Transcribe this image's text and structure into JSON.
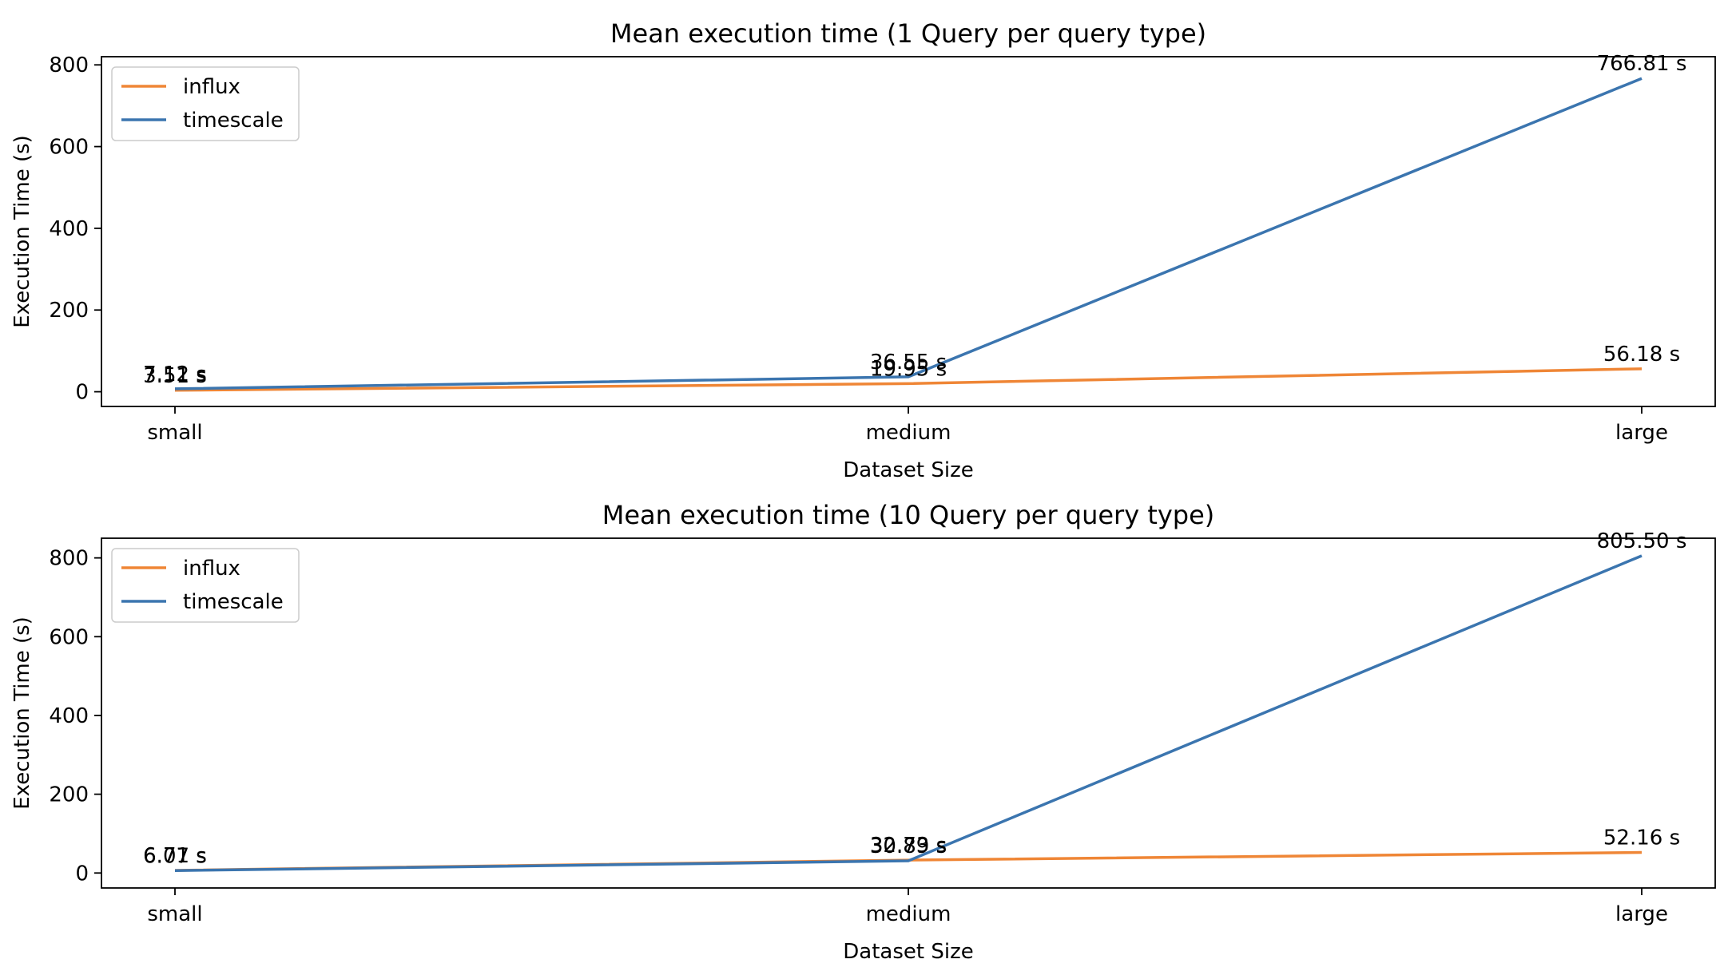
{
  "chart_data": [
    {
      "type": "line",
      "title": "Mean execution time (1 Query per query type)",
      "xlabel": "Dataset Size",
      "ylabel": "Execution Time (s)",
      "categories": [
        "small",
        "medium",
        "large"
      ],
      "ylim": [
        -36,
        820
      ],
      "yticks": [
        0,
        200,
        400,
        600,
        800
      ],
      "grid": false,
      "legend_position": "top-left",
      "series": [
        {
          "name": "influx",
          "color": "#ef8636",
          "values": [
            3.51,
            19.95,
            56.18
          ],
          "labels": [
            "3.51 s",
            "19.95 s",
            "56.18 s"
          ]
        },
        {
          "name": "timescale",
          "color": "#3b75af",
          "values": [
            7.12,
            36.55,
            766.81
          ],
          "labels": [
            "7.12 s",
            "36.55 s",
            "766.81 s"
          ]
        }
      ]
    },
    {
      "type": "line",
      "title": "Mean execution time (10 Query per query type)",
      "xlabel": "Dataset Size",
      "ylabel": "Execution Time (s)",
      "categories": [
        "small",
        "medium",
        "large"
      ],
      "ylim": [
        -38,
        850
      ],
      "yticks": [
        0,
        200,
        400,
        600,
        800
      ],
      "grid": false,
      "legend_position": "top-left",
      "series": [
        {
          "name": "influx",
          "color": "#ef8636",
          "values": [
            6.71,
            32.73,
            52.16
          ],
          "labels": [
            "6.71 s",
            "32.73 s",
            "52.16 s"
          ]
        },
        {
          "name": "timescale",
          "color": "#3b75af",
          "values": [
            6.07,
            30.89,
            805.5
          ],
          "labels": [
            "6.07 s",
            "30.89 s",
            "805.50 s"
          ]
        }
      ]
    }
  ]
}
